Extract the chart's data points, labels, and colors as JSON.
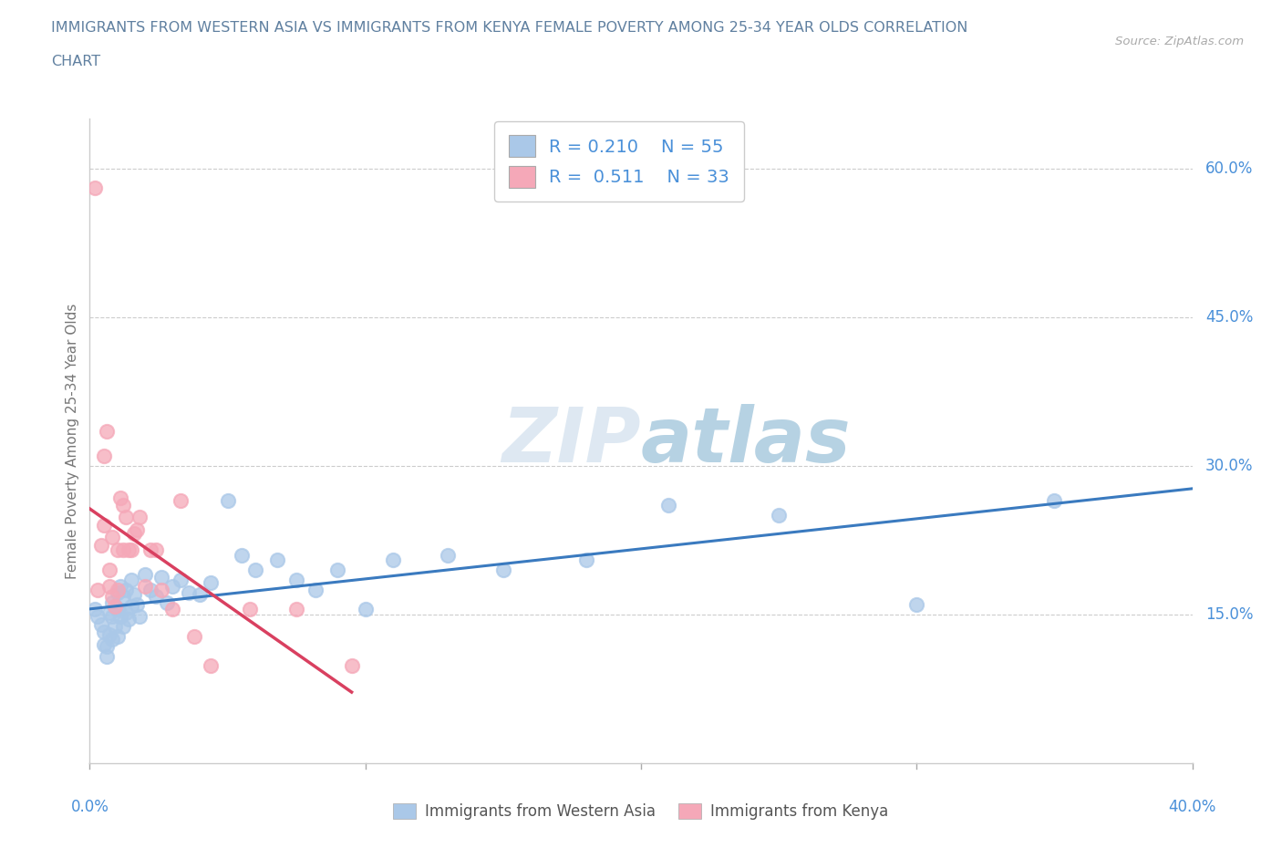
{
  "title_line1": "IMMIGRANTS FROM WESTERN ASIA VS IMMIGRANTS FROM KENYA FEMALE POVERTY AMONG 25-34 YEAR OLDS CORRELATION",
  "title_line2": "CHART",
  "source": "Source: ZipAtlas.com",
  "xmin": 0.0,
  "xmax": 0.4,
  "ymin": 0.0,
  "ymax": 0.65,
  "ytick_vals": [
    0.15,
    0.3,
    0.45,
    0.6
  ],
  "ytick_labels": [
    "15.0%",
    "30.0%",
    "45.0%",
    "60.0%"
  ],
  "blue_scatter_color": "#aac8e8",
  "pink_scatter_color": "#f5a8b8",
  "blue_line_color": "#3a7abf",
  "pink_line_color": "#d94060",
  "title_color": "#6080a0",
  "axis_label_color": "#4a90d9",
  "legend_r1": "0.210",
  "legend_n1": "55",
  "legend_r2": "0.511",
  "legend_n2": "33",
  "ylabel": "Female Poverty Among 25-34 Year Olds",
  "legend1_label": "Immigrants from Western Asia",
  "legend2_label": "Immigrants from Kenya",
  "western_asia_x": [
    0.002,
    0.003,
    0.004,
    0.005,
    0.005,
    0.006,
    0.006,
    0.007,
    0.007,
    0.008,
    0.008,
    0.008,
    0.009,
    0.009,
    0.01,
    0.01,
    0.01,
    0.011,
    0.011,
    0.012,
    0.012,
    0.013,
    0.013,
    0.014,
    0.015,
    0.015,
    0.016,
    0.017,
    0.018,
    0.02,
    0.022,
    0.024,
    0.026,
    0.028,
    0.03,
    0.033,
    0.036,
    0.04,
    0.044,
    0.05,
    0.055,
    0.06,
    0.068,
    0.075,
    0.082,
    0.09,
    0.1,
    0.11,
    0.13,
    0.15,
    0.18,
    0.21,
    0.25,
    0.3,
    0.35
  ],
  "western_asia_y": [
    0.155,
    0.148,
    0.14,
    0.132,
    0.12,
    0.118,
    0.108,
    0.152,
    0.13,
    0.162,
    0.148,
    0.125,
    0.158,
    0.138,
    0.172,
    0.155,
    0.128,
    0.178,
    0.148,
    0.168,
    0.138,
    0.175,
    0.152,
    0.145,
    0.185,
    0.158,
    0.17,
    0.16,
    0.148,
    0.19,
    0.175,
    0.168,
    0.188,
    0.162,
    0.178,
    0.185,
    0.172,
    0.17,
    0.182,
    0.265,
    0.21,
    0.195,
    0.205,
    0.185,
    0.175,
    0.195,
    0.155,
    0.205,
    0.21,
    0.195,
    0.205,
    0.26,
    0.25,
    0.16,
    0.265
  ],
  "kenya_x": [
    0.002,
    0.003,
    0.004,
    0.005,
    0.005,
    0.006,
    0.007,
    0.007,
    0.008,
    0.008,
    0.009,
    0.01,
    0.01,
    0.011,
    0.012,
    0.012,
    0.013,
    0.014,
    0.015,
    0.016,
    0.017,
    0.018,
    0.02,
    0.022,
    0.024,
    0.026,
    0.03,
    0.033,
    0.038,
    0.044,
    0.058,
    0.075,
    0.095
  ],
  "kenya_y": [
    0.58,
    0.175,
    0.22,
    0.24,
    0.31,
    0.335,
    0.178,
    0.195,
    0.168,
    0.228,
    0.158,
    0.175,
    0.215,
    0.268,
    0.215,
    0.26,
    0.248,
    0.215,
    0.215,
    0.232,
    0.235,
    0.248,
    0.178,
    0.215,
    0.215,
    0.175,
    0.155,
    0.265,
    0.128,
    0.098,
    0.155,
    0.155,
    0.098
  ]
}
